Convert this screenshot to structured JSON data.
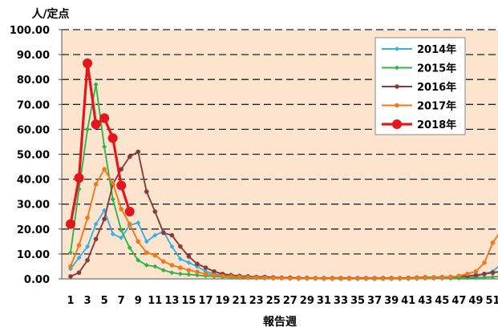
{
  "chart_data": {
    "type": "line",
    "ylabel": "人/定点",
    "xlabel": "報告週",
    "ylim": [
      0,
      100
    ],
    "y_ticks": [
      "0.00",
      "10.00",
      "20.00",
      "30.00",
      "40.00",
      "50.00",
      "60.00",
      "70.00",
      "80.00",
      "90.00",
      "100.00"
    ],
    "x_tick_labels": [
      "1",
      "3",
      "5",
      "7",
      "9",
      "11",
      "13",
      "15",
      "17",
      "19",
      "21",
      "23",
      "25",
      "27",
      "29",
      "31",
      "33",
      "35",
      "37",
      "39",
      "41",
      "43",
      "45",
      "47",
      "49",
      "51"
    ],
    "xlim": [
      1,
      52
    ],
    "grid": "horizontal dashed",
    "legend_position": "top-right",
    "plot_background": "#fde4cf",
    "series": [
      {
        "name": "2014年",
        "color": "#3ab0e0",
        "marker": "diamond",
        "x": [
          1,
          2,
          3,
          4,
          5,
          6,
          7,
          8,
          9,
          10,
          11,
          12,
          13,
          14,
          15,
          16,
          17,
          18,
          19,
          20,
          21,
          22,
          23,
          24,
          25,
          26,
          27,
          28,
          29,
          30,
          31,
          32,
          33,
          34,
          35,
          36,
          37,
          38,
          39,
          40,
          41,
          42,
          43,
          44,
          45,
          46,
          47,
          48,
          49,
          50,
          51,
          52
        ],
        "values": [
          4.0,
          8.5,
          13.0,
          22.0,
          27.5,
          18.0,
          16.5,
          21.5,
          22.5,
          15.0,
          17.5,
          19.0,
          13.0,
          8.0,
          6.5,
          5.0,
          3.0,
          2.0,
          1.5,
          1.2,
          1.0,
          0.8,
          0.6,
          0.5,
          0.4,
          0.3,
          0.3,
          0.2,
          0.2,
          0.2,
          0.2,
          0.2,
          0.1,
          0.1,
          0.1,
          0.1,
          0.1,
          0.1,
          0.1,
          0.1,
          0.1,
          0.2,
          0.2,
          0.2,
          0.3,
          0.4,
          0.5,
          0.6,
          1.0,
          2.0,
          3.0,
          6.0
        ]
      },
      {
        "name": "2015年",
        "color": "#2fb54a",
        "marker": "diamond",
        "x": [
          1,
          2,
          3,
          4,
          5,
          6,
          7,
          8,
          9,
          10,
          11,
          12,
          13,
          14,
          15,
          16,
          17,
          18,
          19,
          20,
          21,
          22,
          23,
          24,
          25,
          26,
          27,
          28,
          29,
          30,
          31,
          32,
          33,
          34,
          35,
          36,
          37,
          38,
          39,
          40,
          41,
          42,
          43,
          44,
          45,
          46,
          47,
          48,
          49,
          50,
          51,
          52
        ],
        "values": [
          10.5,
          36.0,
          60.0,
          78.0,
          53.0,
          32.0,
          19.5,
          12.5,
          7.5,
          5.5,
          5.0,
          3.5,
          2.5,
          2.0,
          1.8,
          1.5,
          1.2,
          1.0,
          0.8,
          0.6,
          0.5,
          0.4,
          0.3,
          0.3,
          0.2,
          0.2,
          0.2,
          0.1,
          0.1,
          0.1,
          0.1,
          0.1,
          0.1,
          0.1,
          0.1,
          0.1,
          0.1,
          0.1,
          0.1,
          0.1,
          0.1,
          0.1,
          0.2,
          0.2,
          0.2,
          0.2,
          0.3,
          0.4,
          0.5,
          0.6,
          0.8,
          1.0
        ]
      },
      {
        "name": "2016年",
        "color": "#8b3a3a",
        "marker": "circle",
        "x": [
          1,
          2,
          3,
          4,
          5,
          6,
          7,
          8,
          9,
          10,
          11,
          12,
          13,
          14,
          15,
          16,
          17,
          18,
          19,
          20,
          21,
          22,
          23,
          24,
          25,
          26,
          27,
          28,
          29,
          30,
          31,
          32,
          33,
          34,
          35,
          36,
          37,
          38,
          39,
          40,
          41,
          42,
          43,
          44,
          45,
          46,
          47,
          48,
          49,
          50,
          51,
          52
        ],
        "values": [
          1.0,
          2.5,
          7.5,
          16.0,
          24.0,
          38.0,
          44.0,
          49.0,
          51.0,
          35.0,
          27.0,
          18.5,
          17.5,
          13.0,
          9.0,
          6.0,
          4.5,
          3.0,
          2.0,
          1.5,
          1.2,
          1.0,
          0.8,
          0.8,
          0.6,
          0.5,
          0.5,
          0.4,
          0.4,
          0.3,
          0.3,
          0.3,
          0.3,
          0.3,
          0.3,
          0.3,
          0.3,
          0.3,
          0.3,
          0.3,
          0.4,
          0.5,
          0.6,
          0.6,
          0.7,
          0.8,
          1.0,
          1.2,
          1.5,
          2.0,
          2.5,
          3.0
        ]
      },
      {
        "name": "2017年",
        "color": "#ef7a1a",
        "marker": "circle",
        "x": [
          1,
          2,
          3,
          4,
          5,
          6,
          7,
          8,
          9,
          10,
          11,
          12,
          13,
          14,
          15,
          16,
          17,
          18,
          19,
          20,
          21,
          22,
          23,
          24,
          25,
          26,
          27,
          28,
          29,
          30,
          31,
          32,
          33,
          34,
          35,
          36,
          37,
          38,
          39,
          40,
          41,
          42,
          43,
          44,
          45,
          46,
          47,
          48,
          49,
          50,
          51,
          52
        ],
        "values": [
          5.0,
          13.5,
          24.5,
          38.0,
          44.0,
          38.5,
          28.0,
          22.0,
          15.0,
          10.5,
          9.5,
          7.0,
          5.5,
          4.5,
          3.5,
          2.8,
          2.0,
          1.5,
          1.2,
          1.0,
          0.8,
          0.6,
          0.5,
          0.4,
          0.3,
          0.3,
          0.2,
          0.2,
          0.2,
          0.2,
          0.1,
          0.1,
          0.1,
          0.1,
          0.1,
          0.1,
          0.1,
          0.1,
          0.1,
          0.2,
          0.2,
          0.3,
          0.4,
          0.5,
          0.6,
          0.8,
          1.2,
          2.0,
          3.0,
          6.5,
          14.5,
          19.5
        ]
      },
      {
        "name": "2018年",
        "color": "#e3161b",
        "marker": "big-circle",
        "x": [
          1,
          2,
          3,
          4,
          5,
          6,
          7,
          8
        ],
        "values": [
          22.0,
          40.5,
          86.5,
          62.0,
          64.5,
          56.5,
          37.5,
          27.0
        ]
      }
    ]
  }
}
